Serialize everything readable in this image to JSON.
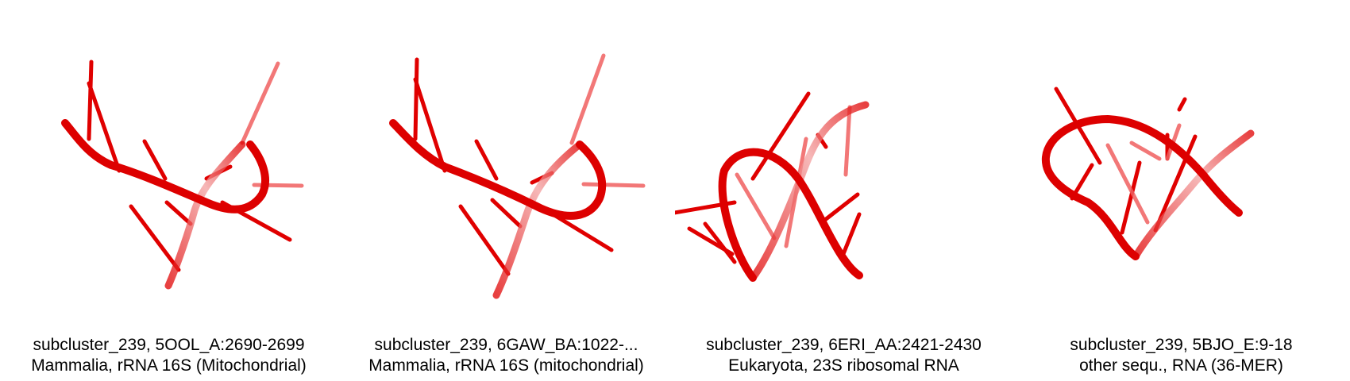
{
  "colors": {
    "structure": "#e00000",
    "faded": "#f08080",
    "background": "#ffffff"
  },
  "panels": [
    {
      "line1": "subcluster_239, 5OOL_A:2690-2699",
      "line2": "Mammalia, rRNA 16S (Mitochondrial)"
    },
    {
      "line1": "subcluster_239, 6GAW_BA:1022-...",
      "line2": "Mammalia, rRNA 16S (mitochondrial)"
    },
    {
      "line1": "subcluster_239, 6ERI_AA:2421-2430",
      "line2": "Eukaryota, 23S ribosomal RNA"
    },
    {
      "line1": "subcluster_239, 5BJO_E:9-18",
      "line2": "other sequ., RNA (36-MER)"
    }
  ]
}
